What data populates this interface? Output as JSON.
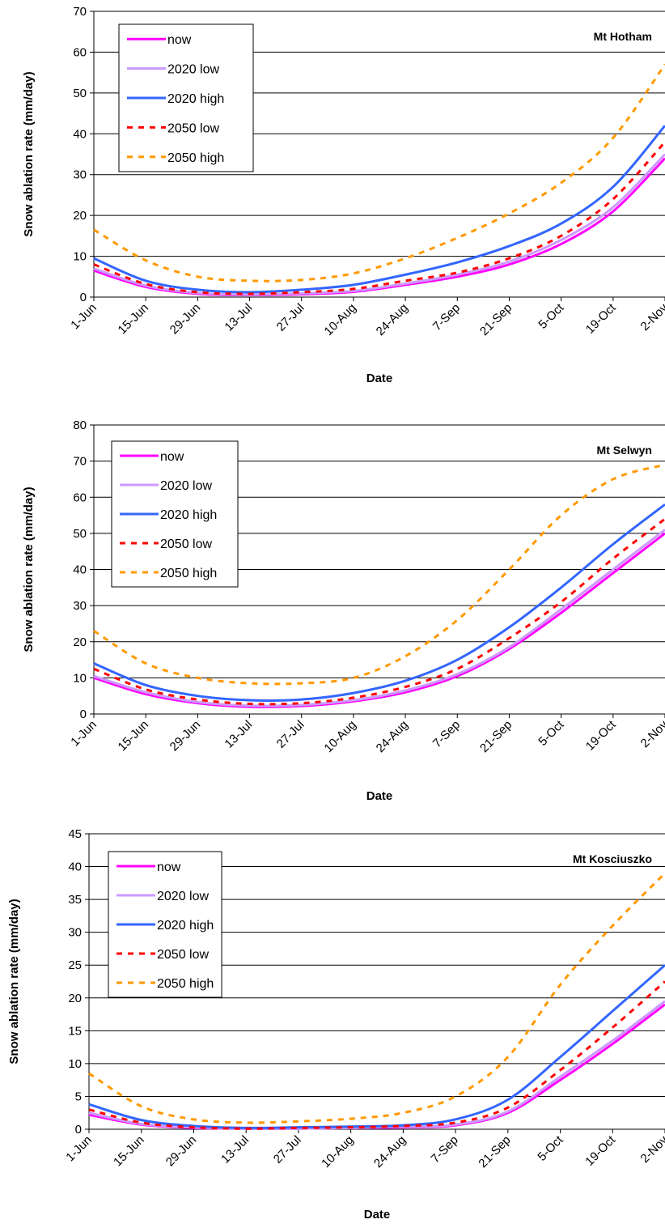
{
  "chart_data": [
    {
      "type": "line",
      "title": "Mt Hotham",
      "xlabel": "Date",
      "ylabel": "Snow ablation rate (mm/day)",
      "ylim": [
        0,
        70
      ],
      "yticks": [
        0,
        10,
        20,
        30,
        40,
        50,
        60,
        70
      ],
      "categories": [
        "1-Jun",
        "15-Jun",
        "29-Jun",
        "13-Jul",
        "27-Jul",
        "10-Aug",
        "24-Aug",
        "7-Sep",
        "21-Sep",
        "5-Oct",
        "19-Oct",
        "2-Nov"
      ],
      "grid": true,
      "legend": "top-left",
      "series": [
        {
          "name": "now",
          "color": "#ff00ff",
          "dash": false,
          "values": [
            6.5,
            2.5,
            0.8,
            0.5,
            0.7,
            1.3,
            3,
            5,
            8,
            13,
            21,
            34
          ]
        },
        {
          "name": "2020 low",
          "color": "#cc99ff",
          "dash": false,
          "values": [
            7,
            2.8,
            1,
            0.6,
            0.9,
            1.5,
            3.3,
            5.5,
            8.7,
            14,
            22,
            35
          ]
        },
        {
          "name": "2020 high",
          "color": "#3366ff",
          "dash": false,
          "values": [
            9.5,
            4,
            1.8,
            1.2,
            1.8,
            3,
            5.5,
            8.5,
            12.5,
            18,
            27,
            42
          ]
        },
        {
          "name": "2050 low",
          "color": "#ff0000",
          "dash": true,
          "values": [
            8,
            3.2,
            1.2,
            0.8,
            1.2,
            2,
            4,
            6,
            9.5,
            15,
            24,
            38
          ]
        },
        {
          "name": "2050 high",
          "color": "#ff9900",
          "dash": true,
          "values": [
            16.5,
            9,
            5,
            4,
            4.2,
            5.8,
            9.5,
            14.5,
            20.5,
            28,
            39,
            57
          ]
        }
      ]
    },
    {
      "type": "line",
      "title": "Mt Selwyn",
      "xlabel": "Date",
      "ylabel": "Snow ablation rate (mm/day)",
      "ylim": [
        0,
        80
      ],
      "yticks": [
        0,
        10,
        20,
        30,
        40,
        50,
        60,
        70,
        80
      ],
      "categories": [
        "1-Jun",
        "15-Jun",
        "29-Jun",
        "13-Jul",
        "27-Jul",
        "10-Aug",
        "24-Aug",
        "7-Sep",
        "21-Sep",
        "5-Oct",
        "19-Oct",
        "2-Nov"
      ],
      "grid": true,
      "legend": "top-left",
      "series": [
        {
          "name": "now",
          "color": "#ff00ff",
          "dash": false,
          "values": [
            10,
            5.5,
            3,
            2,
            2.2,
            3.5,
            6,
            10.5,
            18,
            28,
            39,
            50
          ]
        },
        {
          "name": "2020 low",
          "color": "#cc99ff",
          "dash": false,
          "values": [
            10.5,
            6,
            3.3,
            2.3,
            2.5,
            3.8,
            6.5,
            11,
            18.5,
            29,
            40,
            51
          ]
        },
        {
          "name": "2020 high",
          "color": "#3366ff",
          "dash": false,
          "values": [
            14,
            8,
            5,
            3.8,
            4,
            5.8,
            9.2,
            15,
            24,
            35,
            47,
            58
          ]
        },
        {
          "name": "2050 low",
          "color": "#ff0000",
          "dash": true,
          "values": [
            12.5,
            6.8,
            4,
            2.8,
            3,
            4.5,
            7.5,
            12.5,
            21,
            31,
            43,
            54
          ]
        },
        {
          "name": "2050 high",
          "color": "#ff9900",
          "dash": true,
          "values": [
            23,
            14,
            10,
            8.5,
            8.5,
            10,
            16,
            26,
            40,
            55,
            65,
            69
          ]
        }
      ]
    },
    {
      "type": "line",
      "title": "Mt Kosciuszko",
      "xlabel": "Date",
      "ylabel": "Snow ablation rate (mm/day)",
      "ylim": [
        0,
        45
      ],
      "yticks": [
        0,
        5,
        10,
        15,
        20,
        25,
        30,
        35,
        40,
        45
      ],
      "categories": [
        "1-Jun",
        "15-Jun",
        "29-Jun",
        "13-Jul",
        "27-Jul",
        "10-Aug",
        "24-Aug",
        "7-Sep",
        "21-Sep",
        "5-Oct",
        "19-Oct",
        "2-Nov"
      ],
      "grid": true,
      "legend": "top-left",
      "series": [
        {
          "name": "now",
          "color": "#ff00ff",
          "dash": false,
          "values": [
            2.2,
            0.7,
            0.2,
            0.1,
            0.1,
            0.2,
            0.3,
            0.6,
            2.5,
            7.5,
            13,
            19
          ]
        },
        {
          "name": "2020 low",
          "color": "#cc99ff",
          "dash": false,
          "values": [
            2.5,
            0.8,
            0.3,
            0.1,
            0.1,
            0.2,
            0.4,
            0.7,
            2.7,
            8,
            13.5,
            19.5
          ]
        },
        {
          "name": "2020 high",
          "color": "#3366ff",
          "dash": false,
          "values": [
            3.8,
            1.4,
            0.5,
            0.2,
            0.3,
            0.4,
            0.6,
            1.5,
            4.5,
            11,
            18,
            25
          ]
        },
        {
          "name": "2050 low",
          "color": "#ff0000",
          "dash": true,
          "values": [
            3,
            1,
            0.3,
            0.1,
            0.2,
            0.3,
            0.5,
            1,
            3.3,
            9,
            15.5,
            22.5
          ]
        },
        {
          "name": "2050 high",
          "color": "#ff9900",
          "dash": true,
          "values": [
            8.5,
            3.5,
            1.5,
            1,
            1.2,
            1.6,
            2.5,
            5,
            11,
            22,
            31,
            39
          ]
        }
      ]
    }
  ]
}
